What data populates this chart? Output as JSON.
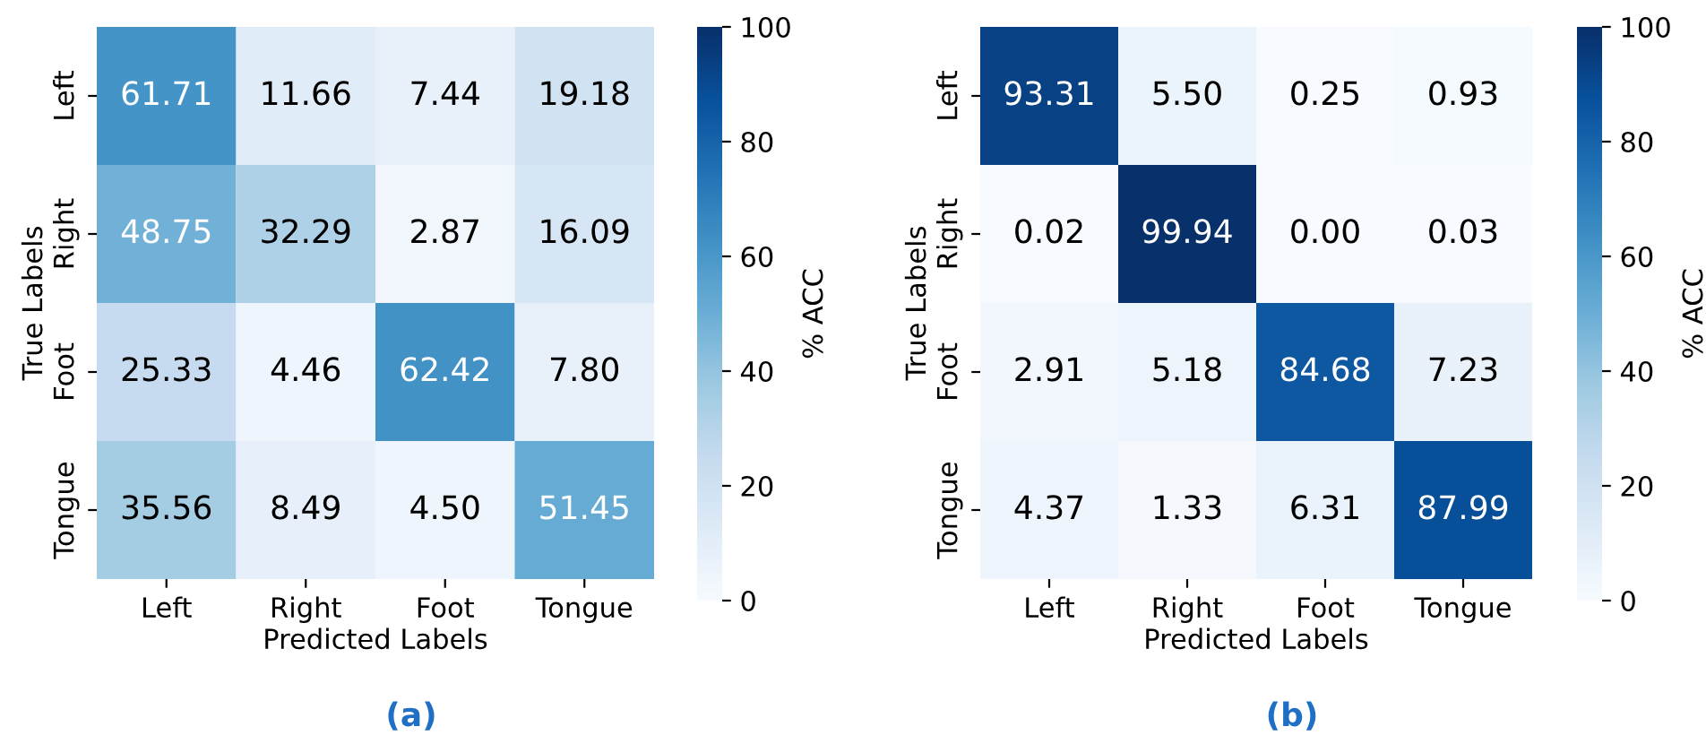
{
  "chart_data": [
    {
      "type": "heatmap",
      "xlabel": "Predicted Labels",
      "ylabel": "True Labels",
      "clabel": "% ACC",
      "annotations": [
        "(a)"
      ],
      "categories": [
        "Left",
        "Right",
        "Foot",
        "Tongue"
      ],
      "y_categories": [
        "Left",
        "Right",
        "Foot",
        "Tongue"
      ],
      "cells": [
        [
          61.71,
          11.66,
          7.44,
          19.18
        ],
        [
          48.75,
          32.29,
          2.87,
          16.09
        ],
        [
          25.33,
          4.46,
          62.42,
          7.8
        ],
        [
          35.56,
          8.49,
          4.5,
          51.45
        ]
      ],
      "cell_labels": [
        [
          "61.71",
          "11.66",
          "7.44",
          "19.18"
        ],
        [
          "48.75",
          "32.29",
          "2.87",
          "16.09"
        ],
        [
          "25.33",
          "4.46",
          "62.42",
          "7.80"
        ],
        [
          "35.56",
          "8.49",
          "4.50",
          "51.45"
        ]
      ],
      "clim": [
        0,
        100
      ],
      "cticks": [
        0,
        20,
        40,
        60,
        80,
        100
      ]
    },
    {
      "type": "heatmap",
      "xlabel": "Predicted Labels",
      "ylabel": "True Labels",
      "clabel": "% ACC",
      "annotations": [
        "(b)"
      ],
      "categories": [
        "Left",
        "Right",
        "Foot",
        "Tongue"
      ],
      "y_categories": [
        "Left",
        "Right",
        "Foot",
        "Tongue"
      ],
      "cells": [
        [
          93.31,
          5.5,
          0.25,
          0.93
        ],
        [
          0.02,
          99.94,
          0.0,
          0.03
        ],
        [
          2.91,
          5.18,
          84.68,
          7.23
        ],
        [
          4.37,
          1.33,
          6.31,
          87.99
        ]
      ],
      "cell_labels": [
        [
          "93.31",
          "5.50",
          "0.25",
          "0.93"
        ],
        [
          "0.02",
          "99.94",
          "0.00",
          "0.03"
        ],
        [
          "2.91",
          "5.18",
          "84.68",
          "7.23"
        ],
        [
          "4.37",
          "1.33",
          "6.31",
          "87.99"
        ]
      ],
      "clim": [
        0,
        100
      ],
      "cticks": [
        0,
        20,
        40,
        60,
        80,
        100
      ]
    }
  ]
}
